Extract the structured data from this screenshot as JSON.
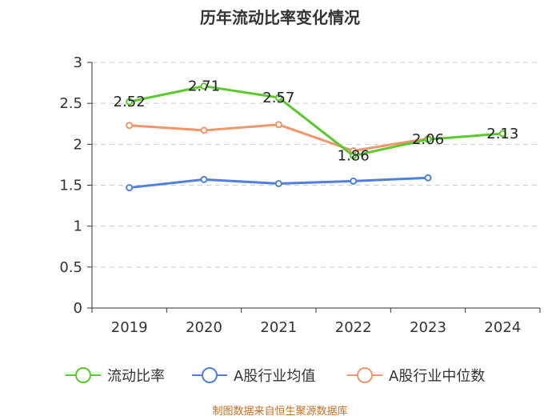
{
  "chart_data": {
    "type": "line",
    "title": "历年流动比率变化情况",
    "categories": [
      "2019",
      "2020",
      "2021",
      "2022",
      "2023",
      "2024"
    ],
    "ylim": [
      0,
      3
    ],
    "yticks": [
      "0",
      "0.5",
      "1",
      "1.5",
      "2",
      "2.5",
      "3"
    ],
    "ytick_values": [
      0,
      0.5,
      1,
      1.5,
      2,
      2.5,
      3
    ],
    "grid": true,
    "legend_position": "bottom",
    "series": [
      {
        "name": "流动比率",
        "color": "#5ac92a",
        "values": [
          2.52,
          2.71,
          2.57,
          1.86,
          2.06,
          2.13
        ],
        "labels": [
          "2.52",
          "2.71",
          "2.57",
          "1.86",
          "2.06",
          "2.13"
        ]
      },
      {
        "name": "A股行业均值",
        "color": "#4f80e0",
        "values": [
          1.47,
          1.57,
          1.52,
          1.55,
          1.59,
          null
        ]
      },
      {
        "name": "A股行业中位数",
        "color": "#f4966a",
        "values": [
          2.23,
          2.17,
          2.24,
          1.92,
          2.07,
          null
        ]
      }
    ]
  },
  "source": "制图数据来自恒生聚源数据库"
}
